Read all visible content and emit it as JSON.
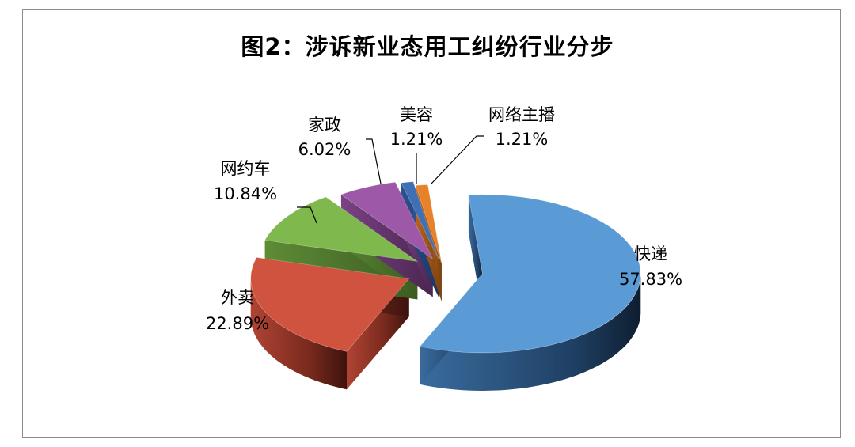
{
  "chart_data": {
    "type": "pie",
    "title": "图2：涉诉新业态用工纠纷行业分步",
    "exploded": true,
    "three_d": true,
    "slices": [
      {
        "label": "快递",
        "value": 57.83,
        "value_label": "57.83%",
        "color": "#5b9bd5"
      },
      {
        "label": "外卖",
        "value": 22.89,
        "value_label": "22.89%",
        "color": "#d0533f"
      },
      {
        "label": "网约车",
        "value": 10.84,
        "value_label": "10.84%",
        "color": "#7fb84d"
      },
      {
        "label": "家政",
        "value": 6.02,
        "value_label": "6.02%",
        "color": "#9e58a8"
      },
      {
        "label": "美容",
        "value": 1.21,
        "value_label": "1.21%",
        "color": "#3f6fb5"
      },
      {
        "label": "网络主播",
        "value": 1.21,
        "value_label": "1.21%",
        "color": "#e8822a"
      }
    ]
  }
}
